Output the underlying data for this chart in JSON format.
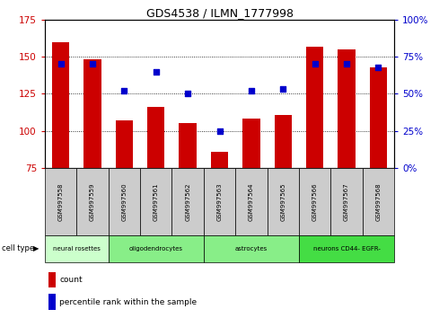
{
  "title": "GDS4538 / ILMN_1777998",
  "samples": [
    "GSM997558",
    "GSM997559",
    "GSM997560",
    "GSM997561",
    "GSM997562",
    "GSM997563",
    "GSM997564",
    "GSM997565",
    "GSM997566",
    "GSM997567",
    "GSM997568"
  ],
  "bar_values": [
    160,
    148,
    107,
    116,
    105,
    86,
    108,
    111,
    157,
    155,
    143
  ],
  "dot_values": [
    70,
    70,
    52,
    65,
    50,
    25,
    52,
    53,
    70,
    70,
    68
  ],
  "ylim_left": [
    75,
    175
  ],
  "ylim_right": [
    0,
    100
  ],
  "yticks_left": [
    75,
    100,
    125,
    150,
    175
  ],
  "yticks_right": [
    0,
    25,
    50,
    75,
    100
  ],
  "bar_color": "#cc0000",
  "dot_color": "#0000cc",
  "bar_bottom": 75,
  "cell_type_groups": [
    {
      "label": "neural rosettes",
      "start": 0,
      "end": 1,
      "color": "#ccffcc"
    },
    {
      "label": "oligodendrocytes",
      "start": 2,
      "end": 4,
      "color": "#88ee88"
    },
    {
      "label": "astrocytes",
      "start": 5,
      "end": 7,
      "color": "#88ee88"
    },
    {
      "label": "neurons CD44- EGFR-",
      "start": 8,
      "end": 10,
      "color": "#44dd44"
    }
  ],
  "tick_label_color_left": "#cc0000",
  "tick_label_color_right": "#0000cc",
  "grid_color": "#000000",
  "sample_label_bg": "#cccccc",
  "legend_count_color": "#cc0000",
  "legend_dot_color": "#0000cc",
  "figsize": [
    4.99,
    3.54
  ],
  "dpi": 100
}
